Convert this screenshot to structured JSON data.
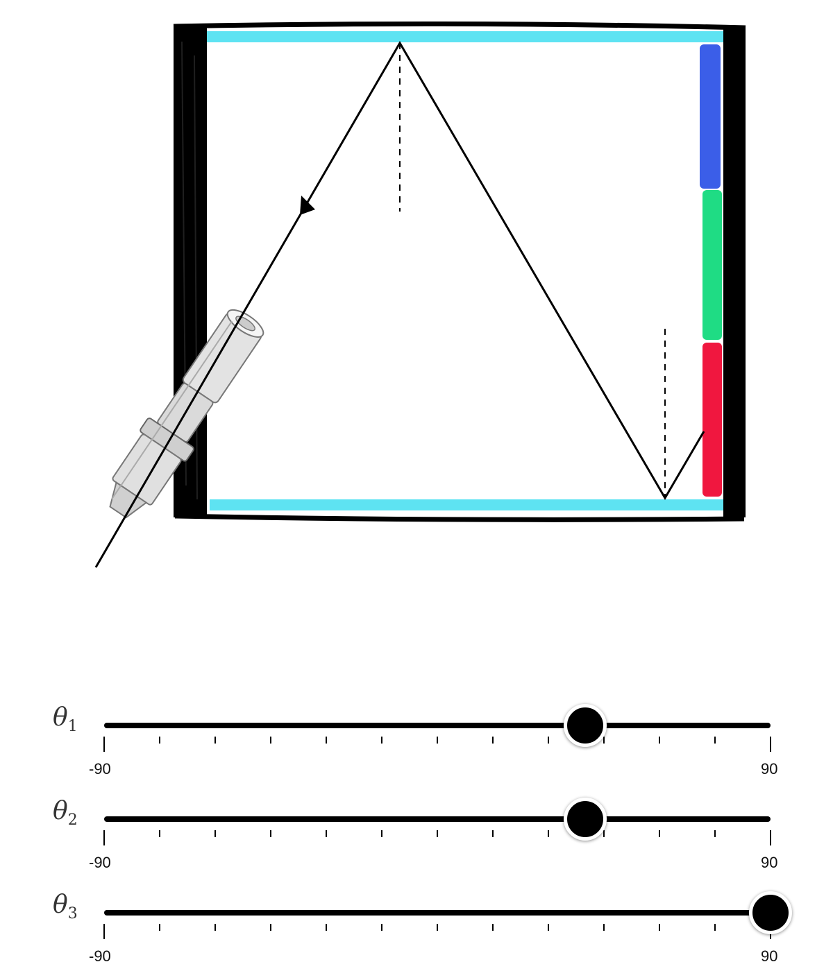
{
  "colors": {
    "mirror": "#5ee3f2",
    "frame": "#000000",
    "detector_blue": "#3b5ee8",
    "detector_green": "#1fdc84",
    "detector_red": "#f0173f",
    "ray": "#000000"
  },
  "icons": {
    "laser": "laser-pointer-icon",
    "arrow": "ray-direction-arrow-icon"
  },
  "sliders": [
    {
      "symbol": "θ",
      "index": "1",
      "value": 40,
      "min_label": "-90",
      "max_label": "90",
      "min": -90,
      "max": 90
    },
    {
      "symbol": "θ",
      "index": "2",
      "value": 40,
      "min_label": "-90",
      "max_label": "90",
      "min": -90,
      "max": 90
    },
    {
      "symbol": "θ",
      "index": "3",
      "value": 90,
      "min_label": "-90",
      "max_label": "90",
      "min": -90,
      "max": 90
    }
  ]
}
